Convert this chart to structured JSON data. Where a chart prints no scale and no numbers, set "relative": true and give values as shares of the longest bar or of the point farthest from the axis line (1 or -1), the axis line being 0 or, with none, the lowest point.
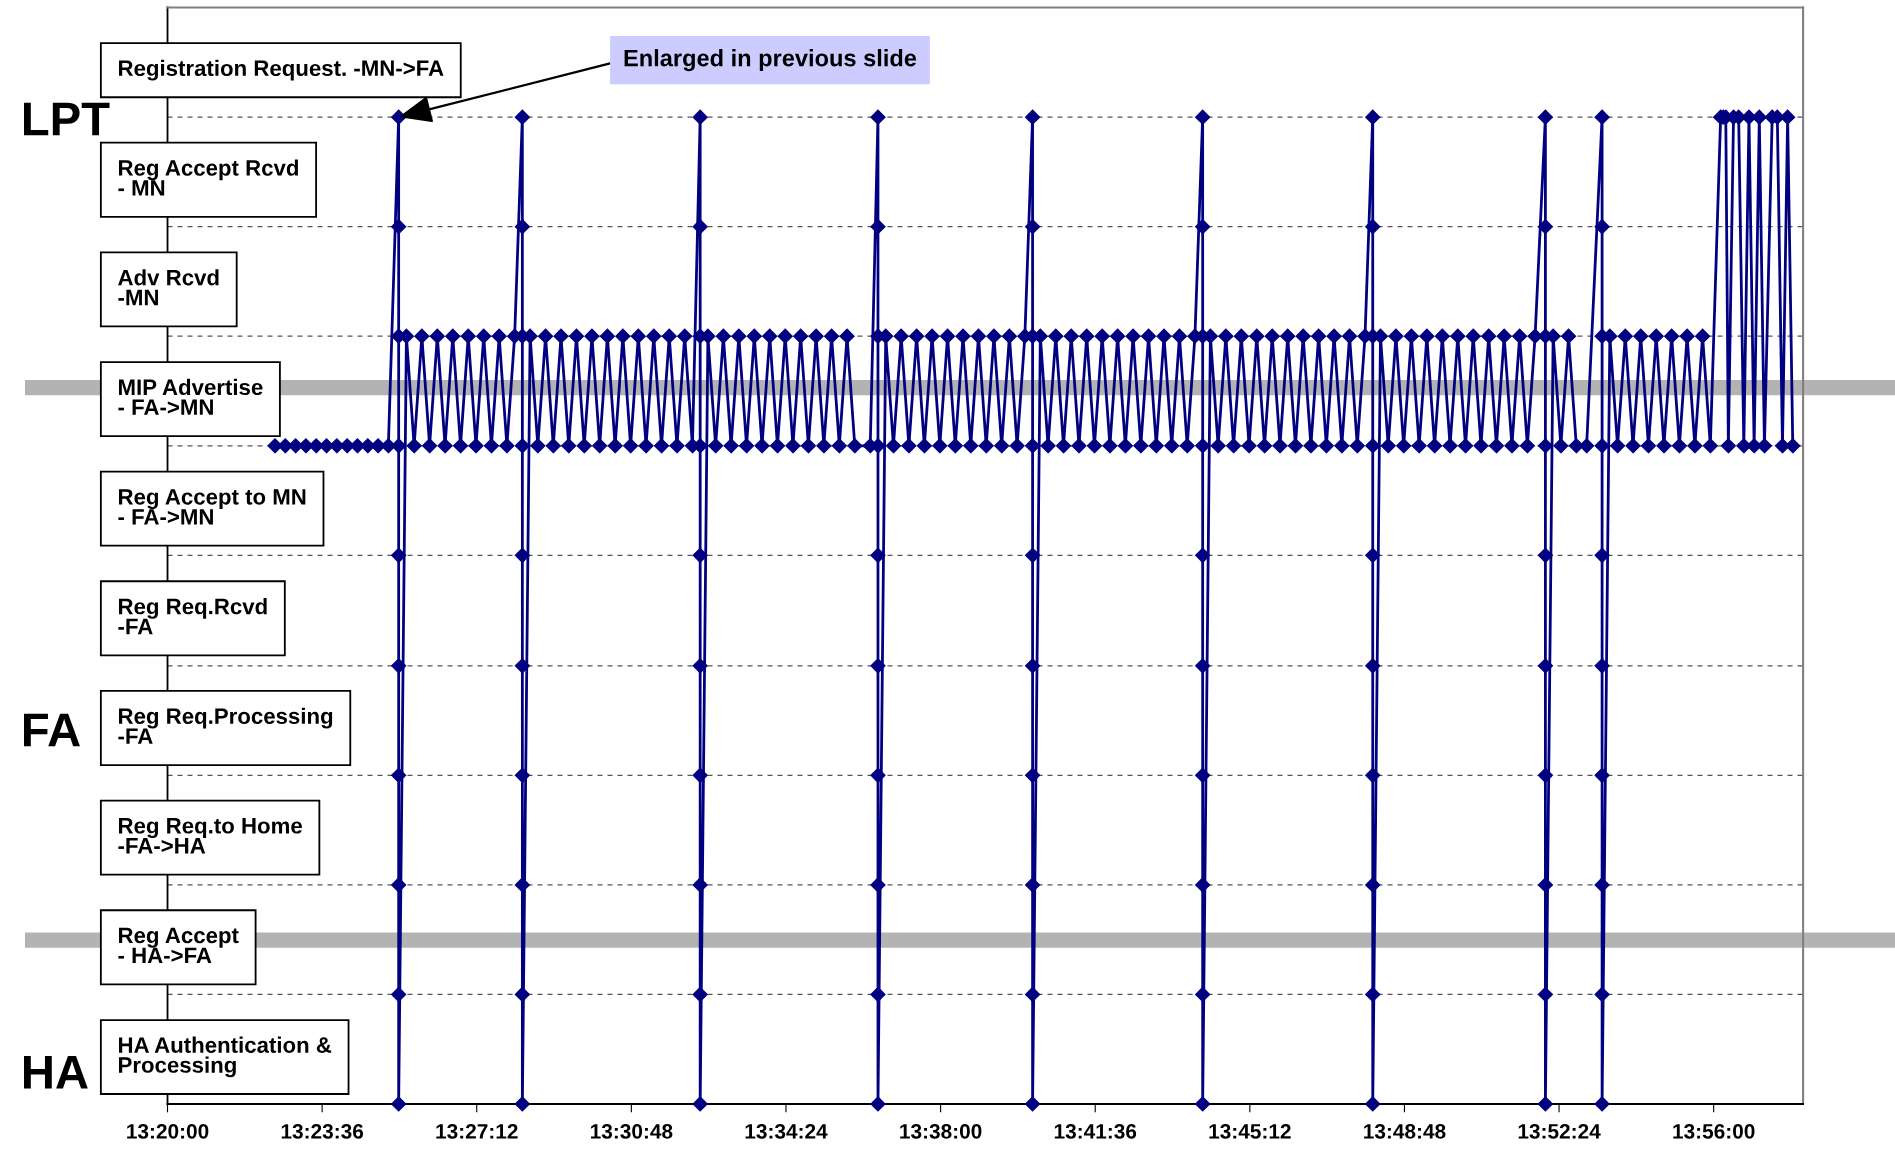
{
  "chart_data": {
    "type": "line",
    "relative": true,
    "x": [
      13.375,
      13.379,
      13.383,
      13.387,
      13.391,
      13.395,
      13.399,
      13.403,
      13.407,
      13.411,
      13.415,
      13.419,
      13.423,
      13.423,
      13.423,
      13.423,
      13.423,
      13.423,
      13.423,
      13.423,
      13.423,
      13.423,
      13.426,
      13.429,
      13.432,
      13.435,
      13.438,
      13.441,
      13.444,
      13.447,
      13.45,
      13.453,
      13.456,
      13.459,
      13.462,
      13.465,
      13.468,
      13.471,
      13.471,
      13.471,
      13.471,
      13.471,
      13.471,
      13.471,
      13.471,
      13.471,
      13.471,
      13.474,
      13.477,
      13.48,
      13.483,
      13.486,
      13.489,
      13.492,
      13.495,
      13.498,
      13.501,
      13.504,
      13.507,
      13.51,
      13.513,
      13.516,
      13.519,
      13.522,
      13.525,
      13.528,
      13.531,
      13.534,
      13.537,
      13.54,
      13.54,
      13.54,
      13.54,
      13.54,
      13.54,
      13.54,
      13.54,
      13.54,
      13.54,
      13.543,
      13.546,
      13.549,
      13.552,
      13.555,
      13.558,
      13.561,
      13.564,
      13.567,
      13.57,
      13.573,
      13.576,
      13.579,
      13.582,
      13.585,
      13.588,
      13.591,
      13.594,
      13.597,
      13.6,
      13.606,
      13.609,
      13.609,
      13.609,
      13.609,
      13.609,
      13.609,
      13.609,
      13.609,
      13.609,
      13.609,
      13.612,
      13.615,
      13.618,
      13.621,
      13.624,
      13.627,
      13.63,
      13.633,
      13.636,
      13.639,
      13.642,
      13.645,
      13.648,
      13.651,
      13.654,
      13.657,
      13.66,
      13.663,
      13.666,
      13.669,
      13.669,
      13.669,
      13.669,
      13.669,
      13.669,
      13.669,
      13.669,
      13.669,
      13.669,
      13.672,
      13.675,
      13.678,
      13.681,
      13.684,
      13.687,
      13.69,
      13.693,
      13.696,
      13.699,
      13.702,
      13.705,
      13.708,
      13.711,
      13.714,
      13.717,
      13.72,
      13.723,
      13.726,
      13.729,
      13.732,
      13.735,
      13.735,
      13.735,
      13.735,
      13.735,
      13.735,
      13.735,
      13.735,
      13.735,
      13.735,
      13.738,
      13.741,
      13.744,
      13.747,
      13.75,
      13.753,
      13.756,
      13.759,
      13.762,
      13.765,
      13.768,
      13.771,
      13.774,
      13.777,
      13.78,
      13.783,
      13.786,
      13.789,
      13.792,
      13.795,
      13.798,
      13.801,
      13.801,
      13.801,
      13.801,
      13.801,
      13.801,
      13.801,
      13.801,
      13.801,
      13.801,
      13.804,
      13.807,
      13.81,
      13.813,
      13.816,
      13.819,
      13.822,
      13.825,
      13.828,
      13.831,
      13.834,
      13.837,
      13.84,
      13.843,
      13.846,
      13.849,
      13.852,
      13.855,
      13.858,
      13.861,
      13.864,
      13.868,
      13.868,
      13.868,
      13.868,
      13.868,
      13.868,
      13.868,
      13.868,
      13.868,
      13.868,
      13.871,
      13.874,
      13.877,
      13.88,
      13.884,
      13.89,
      13.89,
      13.89,
      13.89,
      13.89,
      13.89,
      13.89,
      13.89,
      13.89,
      13.89,
      13.893,
      13.896,
      13.899,
      13.902,
      13.905,
      13.908,
      13.911,
      13.914,
      13.917,
      13.92,
      13.923,
      13.926,
      13.929,
      13.932,
      13.936,
      13.937,
      13.938,
      13.939,
      13.941,
      13.943,
      13.945,
      13.947,
      13.949,
      13.951,
      13.953,
      13.956,
      13.958,
      13.96,
      13.962,
      13.964
    ],
    "series": [
      {
        "color": "#000080",
        "values": [
          0.667,
          0.667,
          0.667,
          0.667,
          0.667,
          0.667,
          0.667,
          0.667,
          0.667,
          0.667,
          0.667,
          0.667,
          1,
          0.889,
          0.778,
          0.667,
          0.556,
          0.444,
          0.333,
          0.222,
          0.111,
          0,
          0.778,
          0.667,
          0.778,
          0.667,
          0.778,
          0.667,
          0.778,
          0.667,
          0.778,
          0.667,
          0.778,
          0.667,
          0.778,
          0.667,
          0.778,
          1,
          0.889,
          0.778,
          0.667,
          0.556,
          0.444,
          0.333,
          0.222,
          0.111,
          0,
          0.778,
          0.667,
          0.778,
          0.667,
          0.778,
          0.667,
          0.778,
          0.667,
          0.778,
          0.667,
          0.778,
          0.667,
          0.778,
          0.667,
          0.778,
          0.667,
          0.778,
          0.667,
          0.778,
          0.667,
          0.778,
          0.667,
          1,
          0.889,
          0.778,
          0.667,
          0.556,
          0.444,
          0.333,
          0.222,
          0.111,
          0,
          0.778,
          0.667,
          0.778,
          0.667,
          0.778,
          0.667,
          0.778,
          0.667,
          0.778,
          0.667,
          0.778,
          0.667,
          0.778,
          0.667,
          0.778,
          0.667,
          0.778,
          0.667,
          0.778,
          0.667,
          0.667,
          1,
          0.889,
          0.778,
          0.667,
          0.556,
          0.444,
          0.333,
          0.222,
          0.111,
          0,
          0.778,
          0.667,
          0.778,
          0.667,
          0.778,
          0.667,
          0.778,
          0.667,
          0.778,
          0.667,
          0.778,
          0.667,
          0.778,
          0.667,
          0.778,
          0.667,
          0.778,
          0.667,
          0.778,
          1,
          0.889,
          0.778,
          0.667,
          0.556,
          0.444,
          0.333,
          0.222,
          0.111,
          0,
          0.778,
          0.667,
          0.778,
          0.667,
          0.778,
          0.667,
          0.778,
          0.667,
          0.778,
          0.667,
          0.778,
          0.667,
          0.778,
          0.667,
          0.778,
          0.667,
          0.778,
          0.667,
          0.778,
          0.667,
          0.778,
          1,
          0.889,
          0.778,
          0.667,
          0.556,
          0.444,
          0.333,
          0.222,
          0.111,
          0,
          0.778,
          0.667,
          0.778,
          0.667,
          0.778,
          0.667,
          0.778,
          0.667,
          0.778,
          0.667,
          0.778,
          0.667,
          0.778,
          0.667,
          0.778,
          0.667,
          0.778,
          0.667,
          0.778,
          0.667,
          0.778,
          1,
          0.889,
          0.778,
          0.667,
          0.556,
          0.444,
          0.333,
          0.222,
          0.111,
          0,
          0.778,
          0.667,
          0.778,
          0.667,
          0.778,
          0.667,
          0.778,
          0.667,
          0.778,
          0.667,
          0.778,
          0.667,
          0.778,
          0.667,
          0.778,
          0.667,
          0.778,
          0.667,
          0.778,
          0.667,
          0.778,
          1,
          0.889,
          0.778,
          0.667,
          0.556,
          0.444,
          0.333,
          0.222,
          0.111,
          0,
          0.778,
          0.667,
          0.778,
          0.667,
          0.667,
          1,
          0.889,
          0.778,
          0.667,
          0.556,
          0.444,
          0.333,
          0.222,
          0.111,
          0,
          0.778,
          0.667,
          0.778,
          0.667,
          0.778,
          0.667,
          0.778,
          0.667,
          0.778,
          0.667,
          0.778,
          0.667,
          0.778,
          0.667,
          1,
          1,
          1,
          0.667,
          1,
          1,
          0.667,
          1,
          0.667,
          1,
          0.667,
          1,
          1,
          0.667,
          1,
          0.667
        ]
      }
    ],
    "xlim": [
      13.3333,
      13.968
    ],
    "xticks": [
      {
        "value": 13.3333,
        "label": "13:20:00"
      },
      {
        "value": 13.3933,
        "label": "13:23:36"
      },
      {
        "value": 13.4533,
        "label": "13:27:12"
      },
      {
        "value": 13.5133,
        "label": "13:30:48"
      },
      {
        "value": 13.5733,
        "label": "13:34:24"
      },
      {
        "value": 13.6333,
        "label": "13:38:00"
      },
      {
        "value": 13.6933,
        "label": "13:41:36"
      },
      {
        "value": 13.7533,
        "label": "13:45:12"
      },
      {
        "value": 13.8133,
        "label": "13:48:48"
      },
      {
        "value": 13.8733,
        "label": "13:52:24"
      },
      {
        "value": 13.9333,
        "label": "13:56:00"
      }
    ],
    "grid": "y",
    "marker": "diamond",
    "line_style": "solid",
    "ref_lines": [
      {
        "axis": "y",
        "value": 0.726,
        "label": null,
        "color": "#b3b3b3"
      },
      {
        "axis": "y",
        "value": 0.166,
        "label": null,
        "color": "#b3b3b3"
      }
    ],
    "annotations": [
      "Registration Request. -MN->FA",
      "Reg Accept Rcvd\n- MN",
      "Adv Rcvd\n-MN",
      "MIP Advertise\n- FA->MN",
      "Reg Accept to MN\n- FA->MN",
      "Reg Req.Rcvd\n-FA",
      "Reg Req.Processing\n-FA",
      "Reg Req.to Home\n-FA->HA",
      "Reg Accept\n- HA->FA",
      "HA Authentication &\nProcessing",
      "LPT",
      "FA",
      "HA",
      {
        "text": "Enlarged in previous slide",
        "x": 13.423,
        "y": 1
      }
    ]
  }
}
